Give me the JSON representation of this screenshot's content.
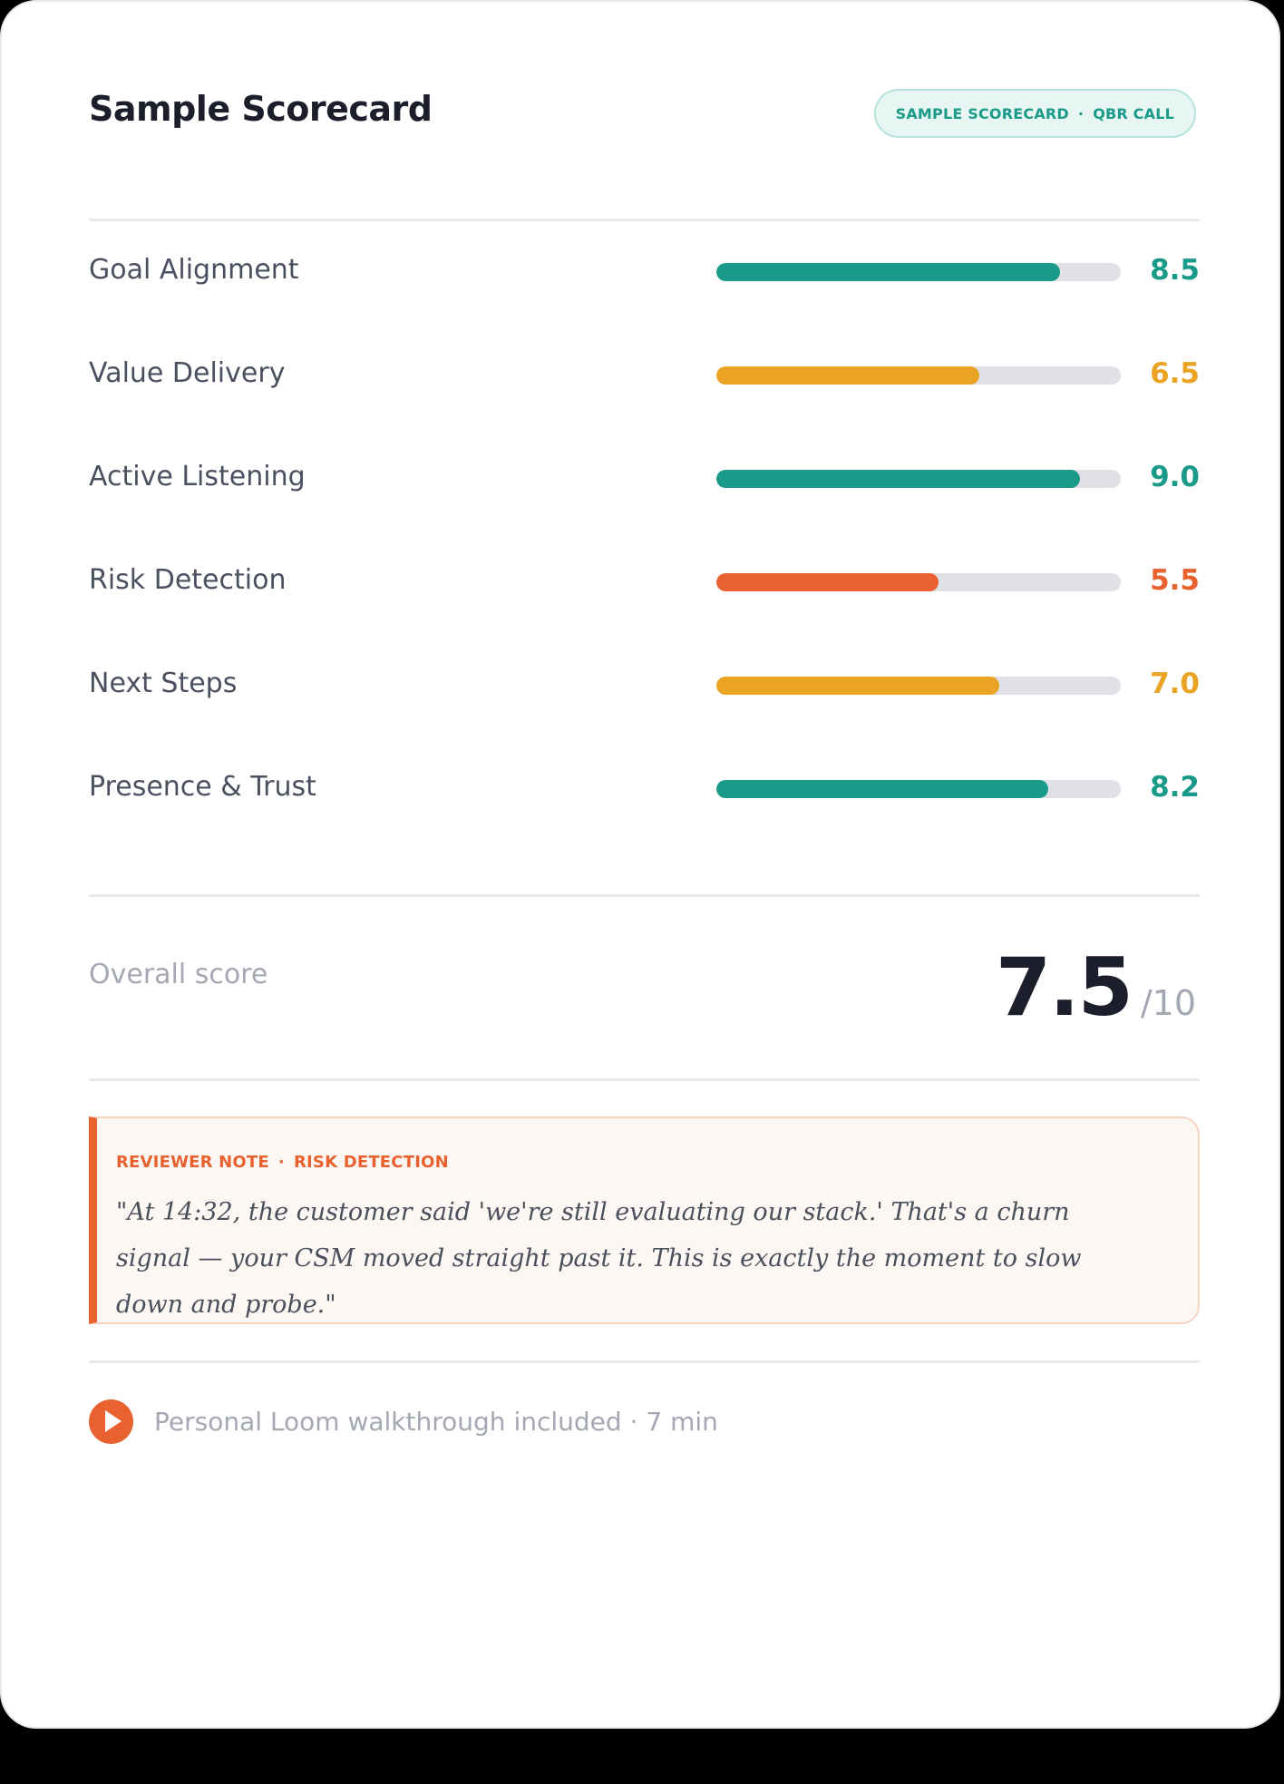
{
  "header": {
    "title": "Sample Scorecard",
    "pill_left": "SAMPLE SCORECARD",
    "pill_sep": "·",
    "pill_right": "QBR CALL"
  },
  "colors": {
    "teal": "#1a9a88",
    "amber": "#eaa323",
    "orange": "#e8612f",
    "track": "#dfe1e6"
  },
  "metrics": [
    {
      "label": "Goal Alignment",
      "value": "8.5",
      "score": 8.5,
      "fill_fraction": 0.85,
      "color": "#1a9a88"
    },
    {
      "label": "Value Delivery",
      "value": "6.5",
      "score": 6.5,
      "fill_fraction": 0.65,
      "color": "#eaa323"
    },
    {
      "label": "Active Listening",
      "value": "9.0",
      "score": 9.0,
      "fill_fraction": 0.9,
      "color": "#1a9a88"
    },
    {
      "label": "Risk Detection",
      "value": "5.5",
      "score": 5.5,
      "fill_fraction": 0.55,
      "color": "#e8612f"
    },
    {
      "label": "Next Steps",
      "value": "7.0",
      "score": 7.0,
      "fill_fraction": 0.7,
      "color": "#eaa323"
    },
    {
      "label": "Presence & Trust",
      "value": "8.2",
      "score": 8.2,
      "fill_fraction": 0.82,
      "color": "#1a9a88"
    }
  ],
  "overall": {
    "label": "Overall score",
    "value": "7.5",
    "denominator": "/10"
  },
  "note": {
    "tag_left": "REVIEWER NOTE",
    "tag_sep": "·",
    "tag_right": "RISK DETECTION",
    "quote": "\"At 14:32, the customer said 'we're still evaluating our stack.' That's a churn signal — your CSM moved straight past it. This is exactly the moment to slow down and probe.\""
  },
  "footer": {
    "icon": "play-icon",
    "text": "Personal Loom walkthrough included · 7 min"
  }
}
